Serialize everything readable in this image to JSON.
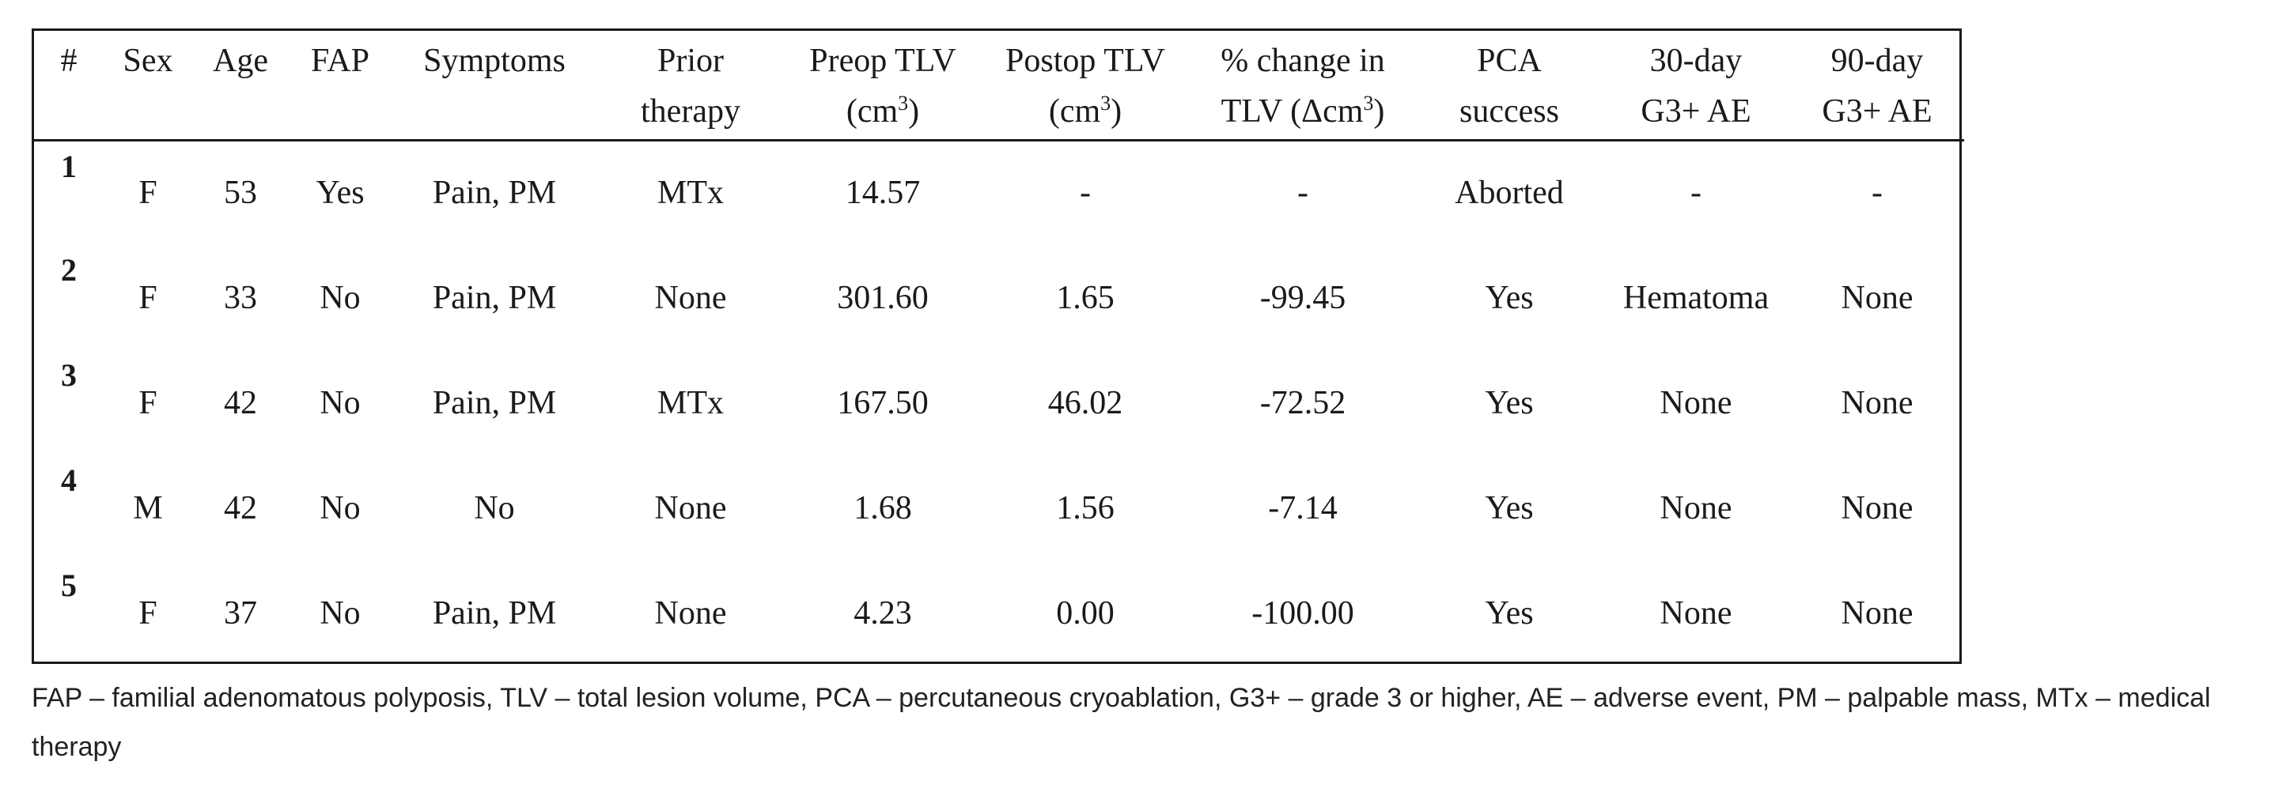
{
  "caption_partial": "-- -- -- -- -- -- -- -- -- -- -- -- -- -- -- -- -- -- -- --apy",
  "table": {
    "headers": [
      {
        "line1": "#",
        "line2": ""
      },
      {
        "line1": "Sex",
        "line2": ""
      },
      {
        "line1": "Age",
        "line2": ""
      },
      {
        "line1": "FAP",
        "line2": ""
      },
      {
        "line1": "Symptoms",
        "line2": ""
      },
      {
        "line1": "Prior",
        "line2": "therapy"
      },
      {
        "line1": "Preop TLV",
        "line2": "(cm",
        "sup2": "3",
        "tail2": ")"
      },
      {
        "line1": "Postop TLV",
        "line2": "(cm",
        "sup2": "3",
        "tail2": ")"
      },
      {
        "line1": "% change in",
        "line2": "TLV (Δcm",
        "sup2": "3",
        "tail2": ")"
      },
      {
        "line1": "PCA",
        "line2": "success"
      },
      {
        "line1": "30-day",
        "line2": "G3+ AE"
      },
      {
        "line1": "90-day",
        "line2": "G3+ AE"
      }
    ],
    "rows": [
      [
        "1",
        "F",
        "53",
        "Yes",
        "Pain, PM",
        "MTx",
        "14.57",
        "-",
        "-",
        "Aborted",
        "-",
        "-"
      ],
      [
        "2",
        "F",
        "33",
        "No",
        "Pain, PM",
        "None",
        "301.60",
        "1.65",
        "-99.45",
        "Yes",
        "Hematoma",
        "None"
      ],
      [
        "3",
        "F",
        "42",
        "No",
        "Pain, PM",
        "MTx",
        "167.50",
        "46.02",
        "-72.52",
        "Yes",
        "None",
        "None"
      ],
      [
        "4",
        "M",
        "42",
        "No",
        "No",
        "None",
        "1.68",
        "1.56",
        "-7.14",
        "Yes",
        "None",
        "None"
      ],
      [
        "5",
        "F",
        "37",
        "No",
        "Pain, PM",
        "None",
        "4.23",
        "0.00",
        "-100.00",
        "Yes",
        "None",
        "None"
      ]
    ]
  },
  "footnote": "FAP – familial adenomatous polyposis, TLV – total lesion volume, PCA – percutaneous cryoablation, G3+ – grade 3 or higher, AE – adverse event, PM – palpable mass, MTx – medical therapy"
}
